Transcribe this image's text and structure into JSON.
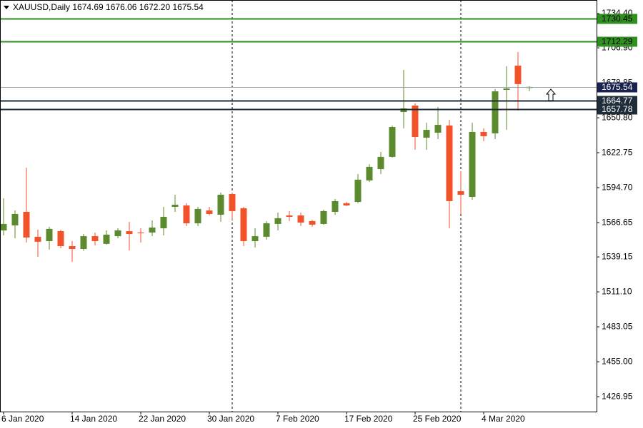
{
  "chart_data": {
    "type": "candlestick",
    "title": "XAUUSD,Daily 1674.69 1676.06 1672.20 1675.54",
    "categories": [
      "6 Jan 2020",
      null,
      null,
      null,
      null,
      null,
      "14 Jan 2020",
      null,
      null,
      null,
      null,
      null,
      "22 Jan 2020",
      null,
      null,
      null,
      null,
      null,
      "30 Jan 2020",
      null,
      null,
      null,
      null,
      null,
      "7 Feb 2020",
      null,
      null,
      null,
      null,
      null,
      "17 Feb 2020",
      null,
      null,
      null,
      null,
      null,
      "25 Feb 2020",
      null,
      null,
      null,
      null,
      null,
      "4 Mar 2020",
      null,
      null,
      null,
      null
    ],
    "open": [
      1560.4,
      1564.4,
      1575.3,
      1555.3,
      1551.8,
      1559.8,
      1547.8,
      1545.5,
      1555.8,
      1549.6,
      1555.8,
      1559.8,
      1558.7,
      1558.7,
      1562.1,
      1579.3,
      1580.4,
      1566.1,
      1576.4,
      1573.0,
      1589.6,
      1578.2,
      1551.8,
      1555.3,
      1565.6,
      1572.4,
      1572.4,
      1567.9,
      1565.6,
      1575.3,
      1582.2,
      1583.3,
      1600.5,
      1609.6,
      1619.4,
      1655.4,
      1660.6,
      1634.8,
      1638.8,
      1644.6,
      1591.9,
      1587.3,
      1639.4,
      1638.3,
      1673.2,
      1692.6,
      1674.69
    ],
    "high": [
      1586.2,
      1576.4,
      1610.8,
      1561.0,
      1563.3,
      1561.0,
      1551.8,
      1557.6,
      1558.7,
      1560.4,
      1562.1,
      1567.3,
      1562.1,
      1568.4,
      1579.3,
      1589.0,
      1582.2,
      1579.3,
      1579.3,
      1590.8,
      1590.8,
      1579.3,
      1562.1,
      1567.9,
      1574.7,
      1575.9,
      1574.7,
      1569.0,
      1577.0,
      1585.6,
      1583.3,
      1605.6,
      1613.6,
      1623.4,
      1644.6,
      1689.2,
      1662.3,
      1646.8,
      1659.4,
      1649.1,
      1607.9,
      1646.8,
      1642.3,
      1673.8,
      1692.1,
      1703.5,
      1676.06
    ],
    "low": [
      1556.4,
      1554.1,
      1550.7,
      1539.2,
      1545.0,
      1546.1,
      1535.2,
      1544.0,
      1548.4,
      1549.0,
      1554.1,
      1544.4,
      1550.7,
      1555.8,
      1556.4,
      1575.3,
      1563.9,
      1563.9,
      1572.4,
      1567.3,
      1569.0,
      1547.8,
      1546.7,
      1553.0,
      1560.4,
      1567.9,
      1563.9,
      1563.3,
      1565.0,
      1573.0,
      1579.9,
      1582.2,
      1599.3,
      1605.6,
      1618.8,
      1642.3,
      1625.1,
      1625.1,
      1633.7,
      1562.1,
      1573.6,
      1585.0,
      1632.0,
      1633.7,
      1641.1,
      1656.6,
      1672.2
    ],
    "close": [
      1565.6,
      1573.6,
      1554.7,
      1551.3,
      1561.6,
      1547.8,
      1545.5,
      1555.8,
      1551.8,
      1557.0,
      1560.4,
      1557.5,
      1558.1,
      1562.7,
      1571.3,
      1581.0,
      1566.1,
      1577.6,
      1573.6,
      1589.0,
      1575.9,
      1551.8,
      1555.8,
      1566.1,
      1570.2,
      1571.3,
      1566.7,
      1565.0,
      1575.9,
      1583.9,
      1580.4,
      1601.1,
      1611.4,
      1619.4,
      1643.4,
      1658.3,
      1635.4,
      1641.1,
      1645.1,
      1583.9,
      1589.0,
      1639.4,
      1636.0,
      1672.0,
      1674.3,
      1677.8,
      1675.54
    ],
    "up_color": "#5b8a2f",
    "down_color": "#f0522a",
    "ylim": [
      1415.0,
      1745.3
    ],
    "yticks": [
      {
        "value": 1734.4,
        "label": "1734.40"
      },
      {
        "value": 1706.9,
        "label": "1706.90"
      },
      {
        "value": 1678.85,
        "label": "1678.85"
      },
      {
        "value": 1650.8,
        "label": "1650.80"
      },
      {
        "value": 1622.75,
        "label": "1622.75"
      },
      {
        "value": 1594.7,
        "label": "1594.70"
      },
      {
        "value": 1566.65,
        "label": "1566.65"
      },
      {
        "value": 1539.15,
        "label": "1539.15"
      },
      {
        "value": 1511.1,
        "label": "1511.10"
      },
      {
        "value": 1483.05,
        "label": "1483.05"
      },
      {
        "value": 1455.0,
        "label": "1455.00"
      },
      {
        "value": 1426.95,
        "label": "1426.95"
      }
    ],
    "levels": [
      {
        "value": 1730.45,
        "label": "1730.45",
        "color": "#2f8f1f",
        "text_color": "#000000"
      },
      {
        "value": 1712.29,
        "label": "1712.29",
        "color": "#2f8f1f",
        "text_color": "#000000"
      },
      {
        "value": 1675.54,
        "label": "1675.54",
        "color": "#9aa3a8",
        "label_color": "#1a2350",
        "text_color": "#ffffff"
      },
      {
        "value": 1664.77,
        "label": "1664.77",
        "color": "#1f2d3a",
        "text_color": "#ffffff"
      },
      {
        "value": 1657.78,
        "label": "1657.78",
        "color": "#1f2d3a",
        "text_color": "#ffffff"
      }
    ]
  }
}
